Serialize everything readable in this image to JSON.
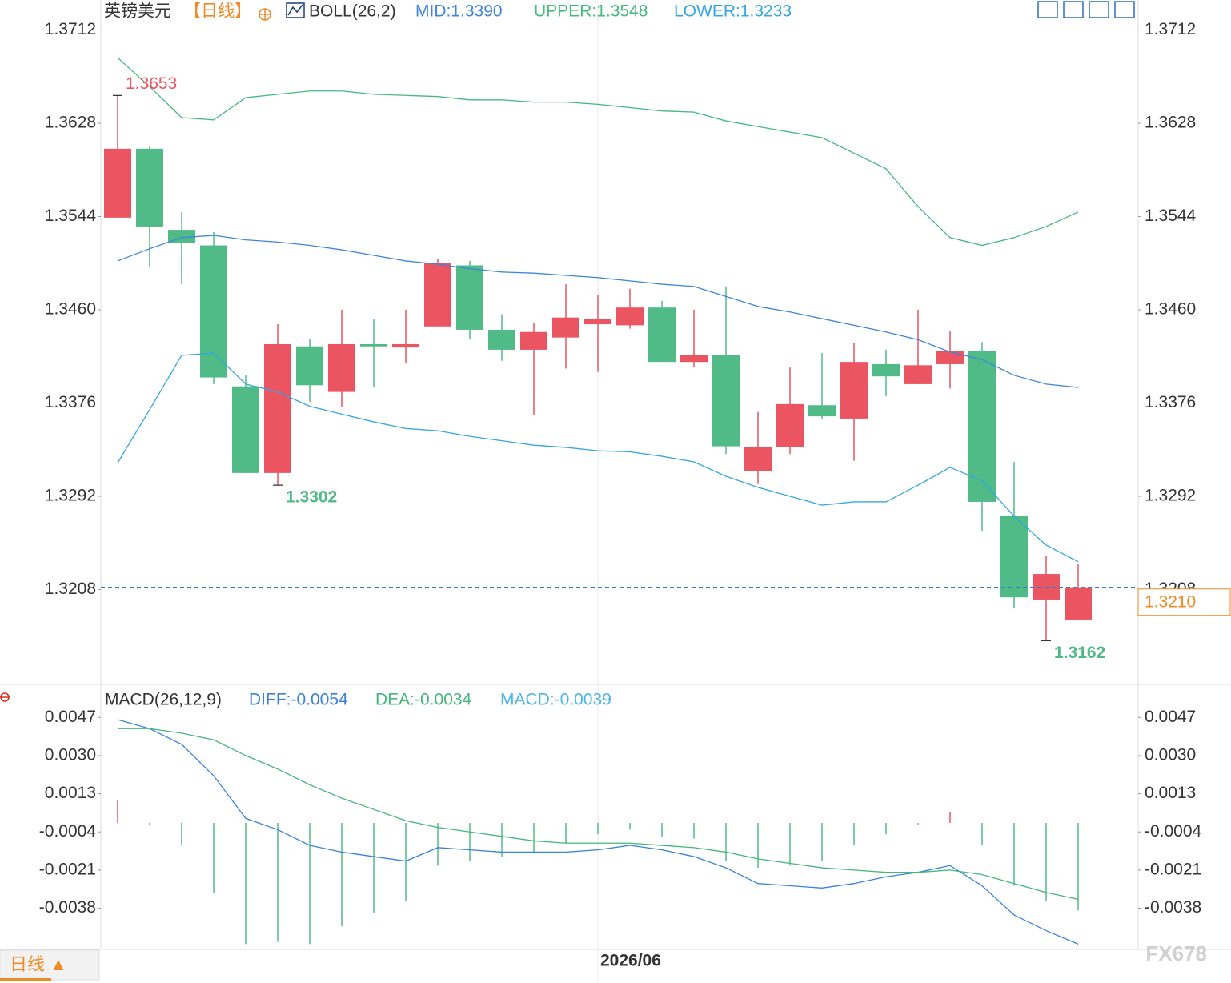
{
  "chart_data": [
    {
      "type": "candlestick",
      "title": "英镑美元",
      "period": "【日线】",
      "indicator": "BOLL(26,2)",
      "categories": [
        null,
        null,
        null,
        null,
        null,
        null,
        null,
        null,
        null,
        null,
        null,
        null,
        null,
        null,
        null,
        "2026/06",
        null,
        null,
        null,
        null,
        null,
        null,
        null,
        null,
        null,
        null,
        null,
        null,
        null,
        null,
        null
      ],
      "open": [
        1.3543,
        1.3605,
        1.3532,
        1.3518,
        1.3391,
        1.3313,
        1.3427,
        1.3386,
        1.3429,
        1.3426,
        1.3445,
        1.35,
        1.3442,
        1.3424,
        1.3435,
        1.3447,
        1.3446,
        1.3462,
        1.3413,
        1.3419,
        1.3315,
        1.3336,
        1.3374,
        1.3362,
        1.3411,
        1.3393,
        1.3411,
        1.3423,
        1.3274,
        1.3199,
        1.3181
      ],
      "high": [
        1.3653,
        1.3607,
        1.3548,
        1.353,
        1.3401,
        1.3447,
        1.3434,
        1.346,
        1.3452,
        1.346,
        1.3506,
        1.3504,
        1.3456,
        1.3448,
        1.3483,
        1.3473,
        1.3479,
        1.3468,
        1.346,
        1.3481,
        1.3368,
        1.3408,
        1.3421,
        1.343,
        1.3424,
        1.346,
        1.3441,
        1.3431,
        1.3323,
        1.3238,
        1.3231
      ],
      "low": [
        1.3543,
        1.3499,
        1.3483,
        1.3393,
        1.3313,
        1.3302,
        1.3377,
        1.3372,
        1.339,
        1.3412,
        1.3445,
        1.3434,
        1.3414,
        1.3365,
        1.3407,
        1.3404,
        1.3443,
        1.3413,
        1.3408,
        1.333,
        1.3303,
        1.333,
        1.3362,
        1.3324,
        1.3382,
        1.3393,
        1.3389,
        1.3261,
        1.3191,
        1.3162,
        1.3181
      ],
      "close": [
        1.3605,
        1.3535,
        1.352,
        1.3399,
        1.3313,
        1.3429,
        1.3392,
        1.3429,
        1.3427,
        1.3429,
        1.3502,
        1.3442,
        1.3424,
        1.344,
        1.3453,
        1.3452,
        1.3462,
        1.3413,
        1.3419,
        1.3337,
        1.3336,
        1.3375,
        1.3364,
        1.3413,
        1.34,
        1.341,
        1.3423,
        1.3287,
        1.3201,
        1.3222,
        1.321
      ],
      "up_color": "#eb5461",
      "down_color": "#50bb86",
      "series": [
        {
          "name": "MID:1.3390",
          "color": "#3d86dc",
          "values": [
            1.3504,
            1.3515,
            1.3525,
            1.3527,
            1.3523,
            1.3521,
            1.3518,
            1.3514,
            1.3509,
            1.3504,
            1.3501,
            1.3497,
            1.3494,
            1.3493,
            1.3491,
            1.3489,
            1.3486,
            1.3483,
            1.3481,
            1.3472,
            1.3463,
            1.3458,
            1.3452,
            1.3446,
            1.344,
            1.3433,
            1.3422,
            1.3415,
            1.3401,
            1.3393,
            1.339
          ]
        },
        {
          "name": "UPPER:1.3548",
          "color": "#45b980",
          "values": [
            1.3687,
            1.3661,
            1.3633,
            1.3631,
            1.3651,
            1.3654,
            1.3657,
            1.3657,
            1.3654,
            1.3653,
            1.3652,
            1.3649,
            1.3649,
            1.3647,
            1.3647,
            1.3645,
            1.3642,
            1.3639,
            1.3638,
            1.363,
            1.3625,
            1.362,
            1.3615,
            1.3601,
            1.3587,
            1.3553,
            1.3525,
            1.3518,
            1.3525,
            1.3535,
            1.3548
          ]
        },
        {
          "name": "LOWER:1.3233",
          "color": "#35a6e0",
          "values": [
            1.3322,
            1.337,
            1.3419,
            1.3421,
            1.3393,
            1.3386,
            1.3373,
            1.3366,
            1.3359,
            1.3353,
            1.3351,
            1.3346,
            1.3342,
            1.3338,
            1.3336,
            1.3333,
            1.3332,
            1.3328,
            1.3323,
            1.331,
            1.33,
            1.3292,
            1.3284,
            1.3287,
            1.3287,
            1.3302,
            1.3318,
            1.3306,
            1.3274,
            1.3248,
            1.3233
          ]
        }
      ],
      "ylim": [
        1.3124,
        1.3739
      ],
      "yticks": [
        1.3712,
        1.3628,
        1.3544,
        {
          "value": 1.346,
          "label": "1.3460"
        },
        1.3376,
        1.3292,
        1.3208
      ],
      "last_price": {
        "value": 1.321,
        "label": "1.3210"
      },
      "last_price_color": "#f08a24",
      "labeled_highs": [
        0
      ],
      "labeled_lows": [
        5,
        29
      ]
    },
    {
      "type": "macd",
      "title": "MACD(26,12,9)",
      "series": [
        {
          "name": "DIFF:-0.0054",
          "color": "#3a82dc",
          "values": [
            0.0046,
            0.0042,
            0.0035,
            0.0021,
            0.0002,
            -0.0003,
            -0.001,
            -0.0013,
            -0.0015,
            -0.0017,
            -0.0011,
            -0.0012,
            -0.0013,
            -0.0013,
            -0.0013,
            -0.0012,
            -0.001,
            -0.0012,
            -0.0015,
            -0.002,
            -0.0027,
            -0.0028,
            -0.0029,
            -0.0027,
            -0.0024,
            -0.0022,
            -0.0019,
            -0.0028,
            -0.0041,
            -0.0048,
            -0.0054
          ]
        },
        {
          "name": "DEA:-0.0034",
          "color": "#45b77c",
          "values": [
            0.0042,
            0.0042,
            0.004,
            0.0037,
            0.003,
            0.0024,
            0.0017,
            0.0011,
            0.0006,
            0.0001,
            -0.0002,
            -0.0004,
            -0.0006,
            -0.0008,
            -0.0009,
            -0.0009,
            -0.0009,
            -0.001,
            -0.0011,
            -0.0013,
            -0.0016,
            -0.0018,
            -0.002,
            -0.0021,
            -0.0022,
            -0.0022,
            -0.0021,
            -0.0023,
            -0.0027,
            -0.0031,
            -0.0034
          ]
        }
      ],
      "histogram": {
        "name": "MACD:-0.0039",
        "color": "#4db6e8",
        "values": [
          0.001,
          -0.0001,
          -0.001,
          -0.0031,
          -0.0054,
          -0.0053,
          -0.0054,
          -0.0046,
          -0.004,
          -0.0035,
          -0.0019,
          -0.0017,
          -0.0015,
          -0.0013,
          -0.0009,
          -0.0005,
          -0.0003,
          -0.0006,
          -0.0007,
          -0.0017,
          -0.002,
          -0.0019,
          -0.0017,
          -0.001,
          -0.0005,
          -0.0001,
          0.0005,
          -0.001,
          -0.0028,
          -0.0035,
          -0.0039
        ]
      },
      "up_color": "#eb5461",
      "down_color": "#50bb86",
      "ylim": [
        -0.0056,
        0.0061
      ],
      "yticks": [
        0.0047,
        {
          "value": 0.003,
          "label": "0.0030"
        },
        0.0013,
        -0.0004,
        -0.0021,
        -0.0038
      ]
    }
  ],
  "period_button": "日线 ▲",
  "watermark": "FX678"
}
